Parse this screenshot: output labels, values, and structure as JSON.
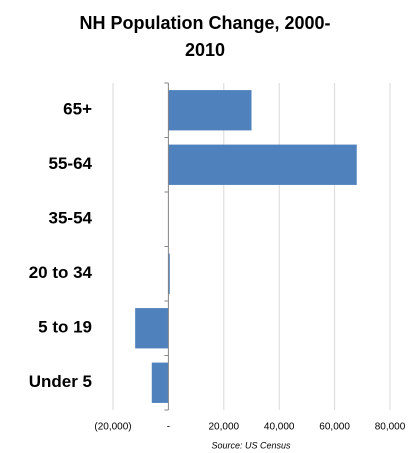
{
  "chart_data": {
    "type": "bar",
    "orientation": "horizontal",
    "title": "NH Population Change, 2000-2010",
    "source": "Source: US Census",
    "categories": [
      "65+",
      "55-64",
      "35-54",
      "20 to 34",
      "5 to 19",
      "Under 5"
    ],
    "values": [
      30000,
      68000,
      0,
      500,
      -12000,
      -6000
    ],
    "color": "#4f81bd",
    "xlim": [
      -20000,
      80000
    ],
    "xticks": [
      {
        "value": -20000,
        "label": "(20,000)"
      },
      {
        "value": 0,
        "label": "-"
      },
      {
        "value": 20000,
        "label": "20,000"
      },
      {
        "value": 40000,
        "label": "40,000"
      },
      {
        "value": 60000,
        "label": "60,000"
      },
      {
        "value": 80000,
        "label": "80,000"
      }
    ],
    "grid": true
  }
}
